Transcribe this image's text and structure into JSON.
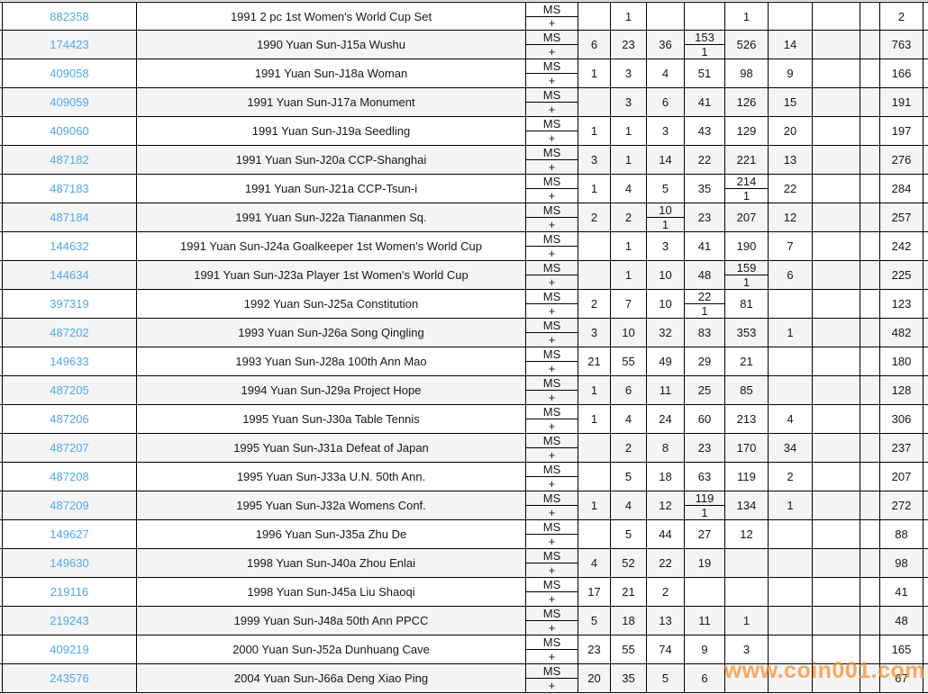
{
  "watermark": "www.coin001.com",
  "grade_label": {
    "ms": "MS",
    "plus": "+"
  },
  "colors": {
    "link_blue": "#53a7e8",
    "alt_row": "#f4f4f4",
    "grid_line": "#000000",
    "watermark_orange": "#f48c2d"
  },
  "rows": [
    {
      "id": "882358",
      "desc": "1991 2 pc 1st Women's World Cup Set",
      "cells": [
        "",
        "1",
        "",
        "",
        "1",
        "",
        "",
        ""
      ],
      "total": "2"
    },
    {
      "id": "174423",
      "desc": "1990 Yuan Sun-J15a Wushu",
      "cells": [
        "6",
        "23",
        "36",
        {
          "ms": "153",
          "plus": "1"
        },
        "526",
        "14",
        "",
        ""
      ],
      "total": "763"
    },
    {
      "id": "409058",
      "desc": "1991 Yuan Sun-J18a Woman",
      "cells": [
        "1",
        "3",
        "4",
        "51",
        "98",
        "9",
        "",
        ""
      ],
      "total": "166"
    },
    {
      "id": "409059",
      "desc": "1991 Yuan Sun-J17a Monument",
      "cells": [
        "",
        "3",
        "6",
        "41",
        "126",
        "15",
        "",
        ""
      ],
      "total": "191"
    },
    {
      "id": "409060",
      "desc": "1991 Yuan Sun-J19a Seedling",
      "cells": [
        "1",
        "1",
        "3",
        "43",
        "129",
        "20",
        "",
        ""
      ],
      "total": "197"
    },
    {
      "id": "487182",
      "desc": "1991 Yuan Sun-J20a CCP-Shanghai",
      "cells": [
        "3",
        "1",
        "14",
        "22",
        "221",
        "13",
        "",
        ""
      ],
      "total": "276"
    },
    {
      "id": "487183",
      "desc": "1991 Yuan Sun-J21a CCP-Tsun-i",
      "cells": [
        "1",
        "4",
        "5",
        "35",
        {
          "ms": "214",
          "plus": "1"
        },
        "22",
        "",
        ""
      ],
      "total": "284"
    },
    {
      "id": "487184",
      "desc": "1991 Yuan Sun-J22a Tiananmen Sq.",
      "cells": [
        "2",
        "2",
        {
          "ms": "10",
          "plus": "1"
        },
        "23",
        "207",
        "12",
        "",
        ""
      ],
      "total": "257"
    },
    {
      "id": "144632",
      "desc": "1991 Yuan Sun-J24a Goalkeeper 1st Women's World Cup",
      "cells": [
        "",
        "1",
        "3",
        "41",
        "190",
        "7",
        "",
        ""
      ],
      "total": "242"
    },
    {
      "id": "144634",
      "desc": "1991 Yuan Sun-J23a Player 1st Women's World Cup",
      "cells": [
        "",
        "1",
        "10",
        "48",
        {
          "ms": "159",
          "plus": "1"
        },
        "6",
        "",
        ""
      ],
      "total": "225"
    },
    {
      "id": "397319",
      "desc": "1992 Yuan Sun-J25a Constitution",
      "cells": [
        "2",
        "7",
        "10",
        {
          "ms": "22",
          "plus": "1"
        },
        "81",
        "",
        "",
        ""
      ],
      "total": "123"
    },
    {
      "id": "487202",
      "desc": "1993 Yuan Sun-J26a Song Qingling",
      "cells": [
        "3",
        "10",
        "32",
        "83",
        "353",
        "1",
        "",
        ""
      ],
      "total": "482"
    },
    {
      "id": "149633",
      "desc": "1993 Yuan Sun-J28a 100th Ann Mao",
      "cells": [
        "21",
        "55",
        "49",
        "29",
        "21",
        "",
        "",
        ""
      ],
      "total": "180"
    },
    {
      "id": "487205",
      "desc": "1994 Yuan Sun-J29a Project Hope",
      "cells": [
        "1",
        "6",
        "11",
        "25",
        "85",
        "",
        "",
        ""
      ],
      "total": "128"
    },
    {
      "id": "487206",
      "desc": "1995 Yuan Sun-J30a Table Tennis",
      "cells": [
        "1",
        "4",
        "24",
        "60",
        "213",
        "4",
        "",
        ""
      ],
      "total": "306"
    },
    {
      "id": "487207",
      "desc": "1995 Yuan Sun-J31a Defeat of Japan",
      "cells": [
        "",
        "2",
        "8",
        "23",
        "170",
        "34",
        "",
        ""
      ],
      "total": "237"
    },
    {
      "id": "487208",
      "desc": "1995 Yuan Sun-J33a U.N. 50th Ann.",
      "cells": [
        "",
        "5",
        "18",
        "63",
        "119",
        "2",
        "",
        ""
      ],
      "total": "207"
    },
    {
      "id": "487209",
      "desc": "1995 Yuan Sun-J32a Womens Conf.",
      "cells": [
        "1",
        "4",
        "12",
        {
          "ms": "119",
          "plus": "1"
        },
        "134",
        "1",
        "",
        ""
      ],
      "total": "272"
    },
    {
      "id": "149627",
      "desc": "1996 Yuan Sun-J35a Zhu De",
      "cells": [
        "",
        "5",
        "44",
        "27",
        "12",
        "",
        "",
        ""
      ],
      "total": "88"
    },
    {
      "id": "149630",
      "desc": "1998 Yuan Sun-J40a Zhou Enlai",
      "cells": [
        "4",
        "52",
        "22",
        "19",
        "",
        "",
        "",
        ""
      ],
      "total": "98"
    },
    {
      "id": "219116",
      "desc": "1998 Yuan Sun-J45a Liu Shaoqi",
      "cells": [
        "17",
        "21",
        "2",
        "",
        "",
        "",
        "",
        ""
      ],
      "total": "41"
    },
    {
      "id": "219243",
      "desc": "1999 Yuan Sun-J48a 50th Ann PPCC",
      "cells": [
        "5",
        "18",
        "13",
        "11",
        "1",
        "",
        "",
        ""
      ],
      "total": "48"
    },
    {
      "id": "409219",
      "desc": "2000 Yuan Sun-J52a Dunhuang Cave",
      "cells": [
        "23",
        "55",
        "74",
        "9",
        "3",
        "",
        "",
        ""
      ],
      "total": "165"
    },
    {
      "id": "243576",
      "desc": "2004 Yuan Sun-J66a Deng Xiao Ping",
      "cells": [
        "20",
        "35",
        "5",
        "6",
        "",
        "",
        "",
        ""
      ],
      "total": "67"
    }
  ]
}
